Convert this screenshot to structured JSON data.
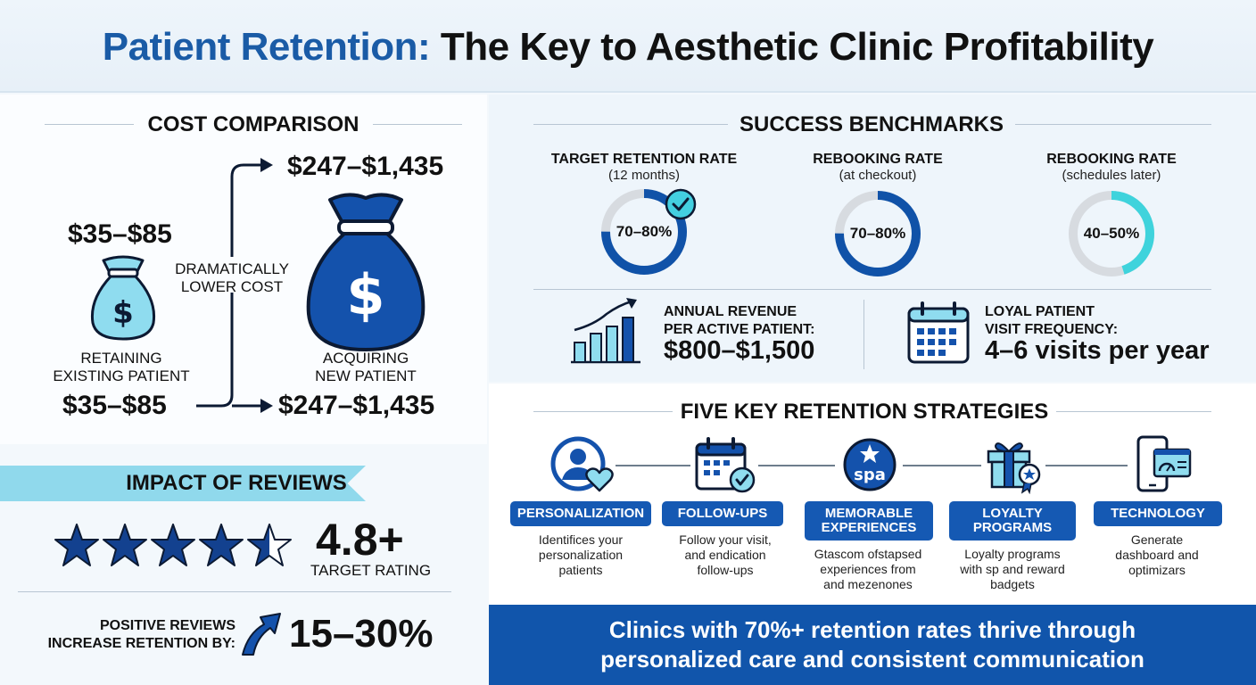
{
  "title": {
    "accent": "Patient Retention:",
    "rest": " The Key to Aesthetic Clinic Profitability"
  },
  "cost": {
    "heading": "COST COMPARISON",
    "retain_top": "$35–$85",
    "retain_label_1": "RETAINING",
    "retain_label_2": "EXISTING PATIENT",
    "retain_bottom": "$35–$85",
    "middle_1": "DRAMATICALLY",
    "middle_2": "LOWER COST",
    "acquire_top": "$247–$1,435",
    "acquire_label_1": "ACQUIRING",
    "acquire_label_2": "NEW PATIENT",
    "acquire_bottom": "$247–$1,435"
  },
  "benchmarks": {
    "heading": "SUCCESS BENCHMARKS",
    "rings": [
      {
        "title": "TARGET RETENTION RATE",
        "sub": "(12 months)",
        "label": "70–80%",
        "fill": 0.75,
        "color": "#1052a8"
      },
      {
        "title": "REBOOKING RATE",
        "sub": "(at checkout)",
        "label": "70–80%",
        "fill": 0.75,
        "color": "#1052a8"
      },
      {
        "title": "REBOOKING RATE",
        "sub": "(schedules later)",
        "label": "40–50%",
        "fill": 0.45,
        "color": "#3fd3dc"
      }
    ],
    "revenue": {
      "line1": "ANNUAL REVENUE",
      "line2": "PER ACTIVE PATIENT:",
      "value": "$800–$1,500"
    },
    "frequency": {
      "line1": "LOYAL PATIENT",
      "line2": "VISIT FREQUENCY:",
      "value": "4–6 visits per year"
    }
  },
  "strategies": {
    "heading": "FIVE KEY RETENTION STRATEGIES",
    "items": [
      {
        "icon": "person-heart-icon",
        "label": "PERSONALIZATION",
        "desc": [
          "Identifices your",
          "personalization",
          "patients"
        ]
      },
      {
        "icon": "calendar-check-icon",
        "label": "FOLLOW-UPS",
        "desc": [
          "Follow your visit,",
          "and endication",
          "follow-ups"
        ]
      },
      {
        "icon": "spa-star-icon",
        "label_1": "MEMORABLE",
        "label_2": "EXPERIENCES",
        "desc": [
          "Gtascom ofstapsed",
          "experiences from",
          "and mezenones"
        ],
        "badge": "spa"
      },
      {
        "icon": "gift-award-icon",
        "label_1": "LOYALTY",
        "label_2": "PROGRAMS",
        "desc": [
          "Loyalty programs",
          "with sp and reward",
          "badgets"
        ]
      },
      {
        "icon": "devices-dashboard-icon",
        "label": "TECHNOLOGY",
        "desc": [
          "Generate",
          "dashboard and",
          "optimizars"
        ]
      }
    ]
  },
  "reviews": {
    "heading": "IMPACT OF REVIEWS",
    "rating": "4.8+",
    "rating_stars": 4.8,
    "rating_label": "TARGET RATING",
    "positive_1": "POSITIVE REVIEWS",
    "positive_2": "INCREASE RETENTION BY:",
    "increase": "15–30%"
  },
  "banner": {
    "line1": "Clinics with 70%+ retention rates thrive through",
    "line2": "personalized care and consistent communication"
  },
  "colors": {
    "navy": "#0d3c8c",
    "blue": "#1559b3",
    "accent_blue": "#1a5ba6",
    "light_blue": "#90d9ec",
    "teal": "#3fd3dc"
  }
}
